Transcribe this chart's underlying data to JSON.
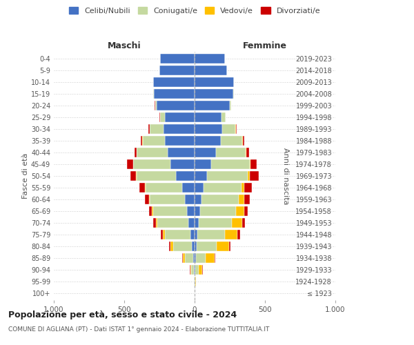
{
  "age_groups": [
    "100+",
    "95-99",
    "90-94",
    "85-89",
    "80-84",
    "75-79",
    "70-74",
    "65-69",
    "60-64",
    "55-59",
    "50-54",
    "45-49",
    "40-44",
    "35-39",
    "30-34",
    "25-29",
    "20-24",
    "15-19",
    "10-14",
    "5-9",
    "0-4"
  ],
  "birth_years": [
    "≤ 1923",
    "1924-1928",
    "1929-1933",
    "1934-1938",
    "1939-1943",
    "1944-1948",
    "1949-1953",
    "1954-1958",
    "1959-1963",
    "1964-1968",
    "1969-1973",
    "1974-1978",
    "1979-1983",
    "1984-1988",
    "1989-1993",
    "1994-1998",
    "1999-2003",
    "2004-2008",
    "2009-2013",
    "2014-2018",
    "2019-2023"
  ],
  "males": {
    "celibi": [
      0,
      2,
      5,
      10,
      20,
      30,
      45,
      55,
      70,
      90,
      130,
      170,
      190,
      210,
      220,
      210,
      270,
      290,
      295,
      250,
      245
    ],
    "coniugati": [
      0,
      3,
      20,
      60,
      130,
      180,
      220,
      240,
      250,
      260,
      280,
      265,
      220,
      160,
      100,
      35,
      10,
      2,
      0,
      0,
      0
    ],
    "vedovi": [
      0,
      2,
      5,
      15,
      20,
      15,
      10,
      8,
      5,
      5,
      5,
      3,
      2,
      2,
      1,
      1,
      1,
      0,
      0,
      0,
      0
    ],
    "divorziati": [
      0,
      0,
      2,
      5,
      10,
      15,
      20,
      20,
      30,
      35,
      40,
      40,
      15,
      10,
      5,
      2,
      1,
      0,
      0,
      0,
      0
    ]
  },
  "females": {
    "nubili": [
      0,
      2,
      5,
      10,
      15,
      20,
      30,
      40,
      50,
      65,
      90,
      120,
      150,
      185,
      195,
      190,
      250,
      275,
      280,
      230,
      215
    ],
    "coniugate": [
      0,
      5,
      25,
      70,
      140,
      195,
      235,
      255,
      265,
      270,
      285,
      270,
      215,
      155,
      95,
      30,
      10,
      2,
      0,
      0,
      0
    ],
    "vedove": [
      0,
      5,
      25,
      60,
      90,
      90,
      75,
      60,
      40,
      20,
      15,
      8,
      5,
      3,
      2,
      1,
      1,
      0,
      0,
      0,
      0
    ],
    "divorziate": [
      0,
      0,
      2,
      5,
      12,
      18,
      20,
      20,
      35,
      50,
      65,
      45,
      15,
      10,
      5,
      2,
      1,
      0,
      0,
      0,
      0
    ]
  },
  "colors": {
    "celibi": "#4472c4",
    "coniugati": "#c5d9a0",
    "vedovi": "#ffc000",
    "divorziati": "#cc0000"
  },
  "xlim": 1000,
  "title": "Popolazione per età, sesso e stato civile - 2024",
  "subtitle": "COMUNE DI AGLIANA (PT) - Dati ISTAT 1° gennaio 2024 - Elaborazione TUTTITALIA.IT",
  "legend_labels": [
    "Celibi/Nubili",
    "Coniugati/e",
    "Vedovi/e",
    "Divorziati/e"
  ],
  "ylabel_left": "Fasce di età",
  "ylabel_right": "Anni di nascita",
  "xlabel_left": "Maschi",
  "xlabel_right": "Femmine",
  "background_color": "#ffffff",
  "grid_color": "#cccccc"
}
